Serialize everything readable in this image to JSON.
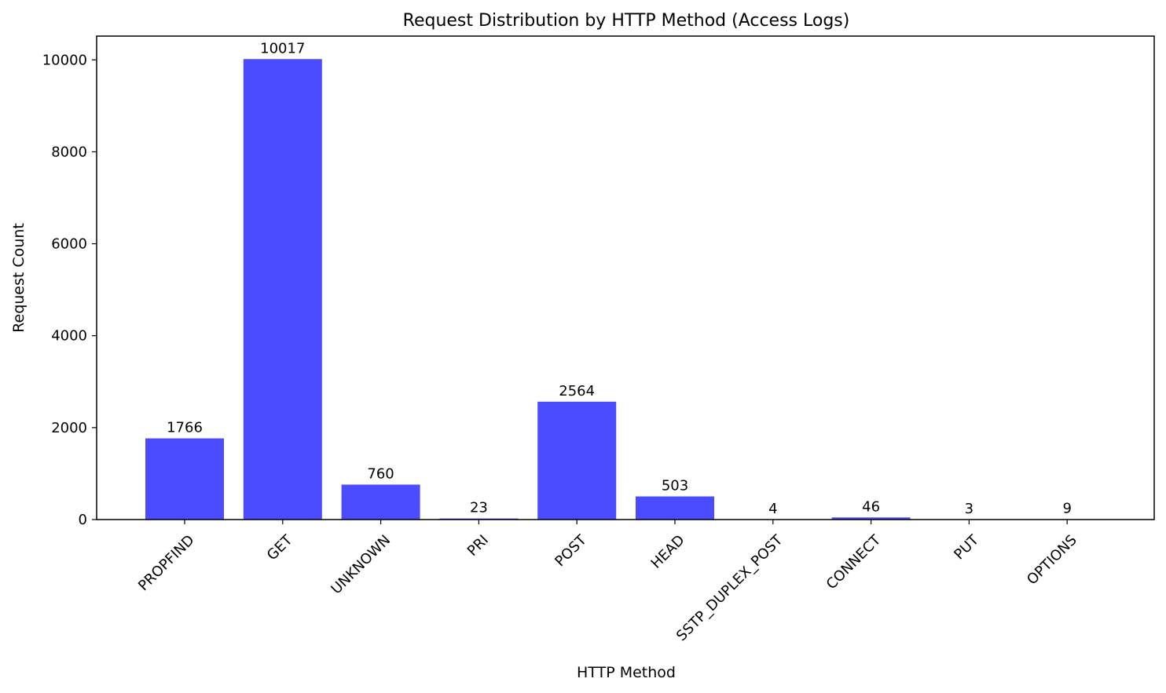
{
  "chart_data": {
    "type": "bar",
    "title": "Request Distribution by HTTP Method (Access Logs)",
    "xlabel": "HTTP Method",
    "ylabel": "Request Count",
    "categories": [
      "PROPFIND",
      "GET",
      "UNKNOWN",
      "PRI",
      "POST",
      "HEAD",
      "SSTP_DUPLEX_POST",
      "CONNECT",
      "PUT",
      "OPTIONS"
    ],
    "values": [
      1766,
      10017,
      760,
      23,
      2564,
      503,
      4,
      46,
      3,
      9
    ],
    "ylim": [
      0,
      10517
    ],
    "yticks": [
      0,
      2000,
      4000,
      6000,
      8000,
      10000
    ],
    "bar_color": "#4b4bff",
    "grid": false,
    "legend": false,
    "data_labels": true
  }
}
